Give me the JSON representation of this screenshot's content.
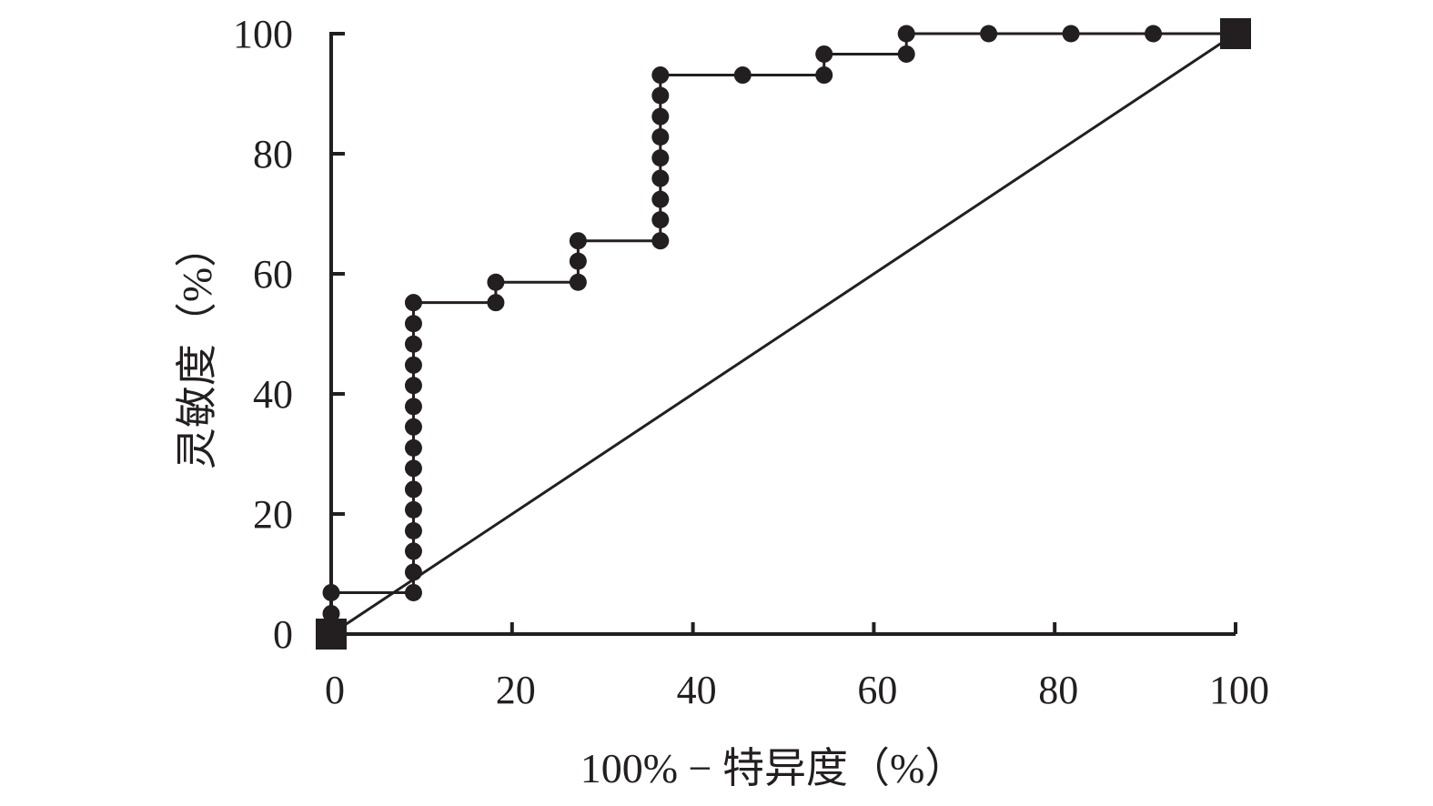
{
  "chart_data": {
    "type": "line",
    "xlabel": "100% − 特异度（%）",
    "ylabel": "灵敏度（%）",
    "xlim": [
      0,
      100
    ],
    "ylim": [
      0,
      100
    ],
    "x_ticks": [
      0,
      20,
      40,
      60,
      80,
      100
    ],
    "y_ticks": [
      0,
      20,
      40,
      60,
      80,
      100
    ],
    "grid": false,
    "legend": "none",
    "colors": {
      "curve": "#231f20",
      "axis": "#231f20",
      "reference": "#231f20"
    },
    "series": [
      {
        "marker": "circle",
        "points": [
          [
            0,
            0
          ],
          [
            0,
            3.4
          ],
          [
            0,
            6.9
          ],
          [
            9.1,
            6.9
          ],
          [
            9.1,
            10.3
          ],
          [
            9.1,
            13.8
          ],
          [
            9.1,
            17.2
          ],
          [
            9.1,
            20.7
          ],
          [
            9.1,
            24.1
          ],
          [
            9.1,
            27.6
          ],
          [
            9.1,
            31.0
          ],
          [
            9.1,
            34.5
          ],
          [
            9.1,
            37.9
          ],
          [
            9.1,
            41.4
          ],
          [
            9.1,
            44.8
          ],
          [
            9.1,
            48.3
          ],
          [
            9.1,
            51.7
          ],
          [
            9.1,
            55.2
          ],
          [
            18.2,
            55.2
          ],
          [
            18.2,
            58.6
          ],
          [
            27.3,
            58.6
          ],
          [
            27.3,
            62.1
          ],
          [
            27.3,
            65.5
          ],
          [
            36.4,
            65.5
          ],
          [
            36.4,
            69.0
          ],
          [
            36.4,
            72.4
          ],
          [
            36.4,
            75.9
          ],
          [
            36.4,
            79.3
          ],
          [
            36.4,
            82.8
          ],
          [
            36.4,
            86.2
          ],
          [
            36.4,
            89.7
          ],
          [
            36.4,
            93.1
          ],
          [
            45.5,
            93.1
          ],
          [
            54.5,
            93.1
          ],
          [
            54.5,
            96.6
          ],
          [
            63.6,
            96.6
          ],
          [
            63.6,
            100
          ],
          [
            72.7,
            100
          ],
          [
            81.8,
            100
          ],
          [
            90.9,
            100
          ],
          [
            100,
            100
          ]
        ]
      },
      {
        "marker": "none",
        "points": [
          [
            0,
            0
          ],
          [
            100,
            100
          ]
        ]
      }
    ],
    "endpoints": [
      [
        0,
        0
      ],
      [
        100,
        100
      ]
    ]
  }
}
